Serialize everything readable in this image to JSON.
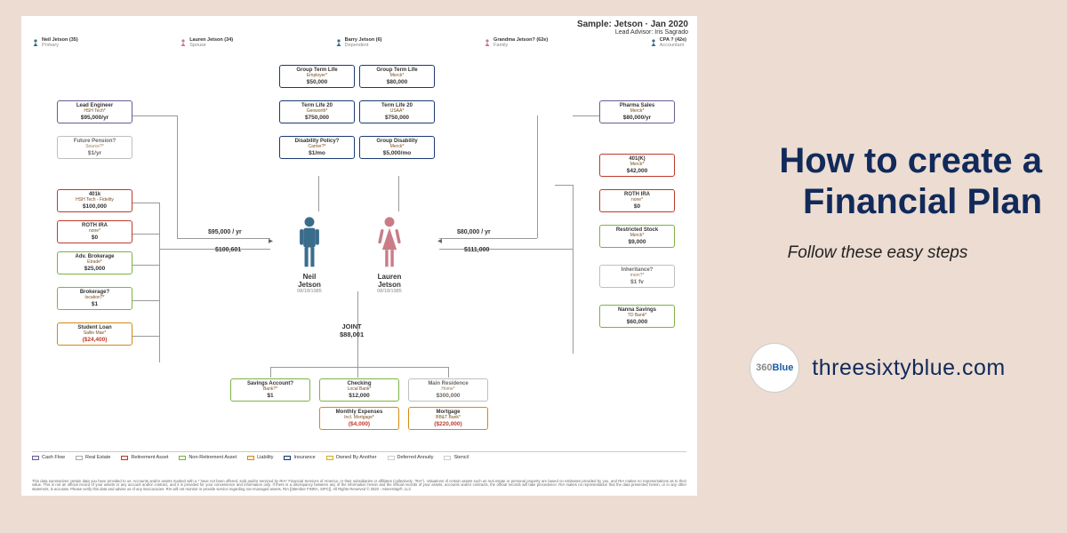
{
  "headline_l1": "How to create a",
  "headline_l2": "Financial Plan",
  "subhead": "Follow these easy steps",
  "brand_1": "360",
  "brand_2": "Blue",
  "brand_url": "threesixtyblue.com",
  "sample_title": "Sample: Jetson · Jan 2020",
  "advisor": "Lead Advisor: Iris Sagrado",
  "people": [
    {
      "name": "Neil Jetson (35)",
      "role": "Primary",
      "color": "#3a6d8c"
    },
    {
      "name": "Lauren Jetson (34)",
      "role": "Spouse",
      "color": "#c97c88"
    },
    {
      "name": "Barry Jetson (6)",
      "role": "Dependent",
      "color": "#3a6d8c"
    },
    {
      "name": "Grandma Jetson? (62e)",
      "role": "Family",
      "color": "#c97c88"
    },
    {
      "name": "CPA ? (42e)",
      "role": "Accountant",
      "color": "#3a6d8c"
    }
  ],
  "neil": {
    "name": "Neil\nJetson",
    "dob": "08/18/1985",
    "color": "#3a6d8c"
  },
  "lauren": {
    "name": "Lauren\nJetson",
    "dob": "08/18/1985",
    "color": "#c97c88"
  },
  "flow_left": "$95,000 / yr",
  "flow_left_sub": "$100,601",
  "flow_right": "$80,000 / yr",
  "flow_right_sub": "$111,000",
  "joint_label": "JOINT",
  "joint_val": "$88,001",
  "colors": {
    "purple": "#6b5b95",
    "gray": "#aaaaaa",
    "red": "#c0392b",
    "green": "#7cb342",
    "orange": "#d68910",
    "navy": "#1a3a6e",
    "yellow": "#d4b020",
    "lgray": "#cccccc"
  },
  "boxes": {
    "lead_eng": {
      "t": "Lead Engineer",
      "s": "HSH Tech*",
      "v": "$95,000/yr",
      "c": "purple"
    },
    "fut_pen": {
      "t": "Future Pension?",
      "s": "Source?*",
      "v": "$1/yr",
      "c": "gray"
    },
    "k401": {
      "t": "401k",
      "s": "HSH Tech - Fidelity",
      "v": "$100,000",
      "c": "red"
    },
    "roth": {
      "t": "ROTH IRA",
      "s": "none*",
      "v": "$0",
      "c": "red"
    },
    "advb": {
      "t": "Adv. Brokerage",
      "s": "Etrade*",
      "v": "$25,000",
      "c": "green"
    },
    "brok": {
      "t": "Brokerage?",
      "s": "location?*",
      "v": "$1",
      "c": "green"
    },
    "sloan": {
      "t": "Student Loan",
      "s": "Sallie Mae*",
      "v": "($24,400)",
      "c": "orange",
      "neg": true
    },
    "gtl1": {
      "t": "Group Term Life",
      "s": "Employer*",
      "v": "$50,000",
      "c": "navy"
    },
    "tl20a": {
      "t": "Term Life 20",
      "s": "Genworth*",
      "v": "$750,000",
      "c": "navy"
    },
    "dis": {
      "t": "Disability Policy?",
      "s": "Carrier?*",
      "v": "$1/mo",
      "c": "navy"
    },
    "gtl2": {
      "t": "Group Term Life",
      "s": "Merck*",
      "v": "$80,000",
      "c": "navy"
    },
    "tl20b": {
      "t": "Term Life 20",
      "s": "USAA*",
      "v": "$750,000",
      "c": "navy"
    },
    "gdis": {
      "t": "Group Disability",
      "s": "Merck*",
      "v": "$5,000/mo",
      "c": "navy"
    },
    "pharma": {
      "t": "Pharma Sales",
      "s": "Merck*",
      "v": "$80,000/yr",
      "c": "purple"
    },
    "k401b": {
      "t": "401(K)",
      "s": "Merck*",
      "v": "$42,000",
      "c": "red"
    },
    "rothb": {
      "t": "ROTH IRA",
      "s": "none*",
      "v": "$0",
      "c": "red"
    },
    "rstock": {
      "t": "Restricted Stock",
      "s": "Merck*",
      "v": "$9,000",
      "c": "green"
    },
    "inh": {
      "t": "Inheritance?",
      "s": "mom?*",
      "v": "$1 fv",
      "c": "gray"
    },
    "nanna": {
      "t": "Nanna Savings",
      "s": "TD Bank*",
      "v": "$60,000",
      "c": "green"
    },
    "sav": {
      "t": "Savings Account?",
      "s": "Bank?*",
      "v": "$1",
      "c": "green"
    },
    "chk": {
      "t": "Checking",
      "s": "Local Bank*",
      "v": "$12,000",
      "c": "green"
    },
    "mexp": {
      "t": "Monthly Expenses",
      "s": "Incl. Mortgage*",
      "v": "($4,000)",
      "c": "orange",
      "neg": true
    },
    "res": {
      "t": "Main Residence",
      "s": "Home*",
      "v": "$300,000",
      "c": "gray"
    },
    "mort": {
      "t": "Mortgage",
      "s": "BB&T Bank*",
      "v": "($220,000)",
      "c": "orange",
      "neg": true
    }
  },
  "legend": [
    {
      "l": "Cash Flow",
      "c": "purple"
    },
    {
      "l": "Real Estate",
      "c": "gray"
    },
    {
      "l": "Retirement Asset",
      "c": "red"
    },
    {
      "l": "Non-Retirement Asset",
      "c": "green"
    },
    {
      "l": "Liability",
      "c": "orange"
    },
    {
      "l": "Insurance",
      "c": "navy"
    },
    {
      "l": "Owned By Another",
      "c": "yellow"
    },
    {
      "l": "Deferred Annuity",
      "c": "lgray"
    },
    {
      "l": "Stencil",
      "c": "lgray"
    }
  ],
  "disclaimer": "This data summarizes certain data you have provided to us. Accounts and/or assets marked with a * have not been offered, sold and/or serviced by RIA* Financial Services of America, or their subsidiaries or affiliates (collectively, \"RIA\"). Valuations of certain assets such as real estate or personal property are based on estimates provided by you, and RIA makes no representations as to their value. This is not an official record of your assets or any account and/or contract, and it is provided for your convenience and information only. If there is a discrepancy between any of the information herein and the official records of your assets, accounts and/or contracts, the official records will take precedence. RIA makes no representation that the data presented herein, or in any other statement, is accurate. Please verify this data and advise us of any inaccuracies. RIA will not monitor or provide service regarding non-managed assets. RIA [(Member FINRA, SIPC)]. All Rights Reserved © 2020 - Asset-Map®, LLC"
}
